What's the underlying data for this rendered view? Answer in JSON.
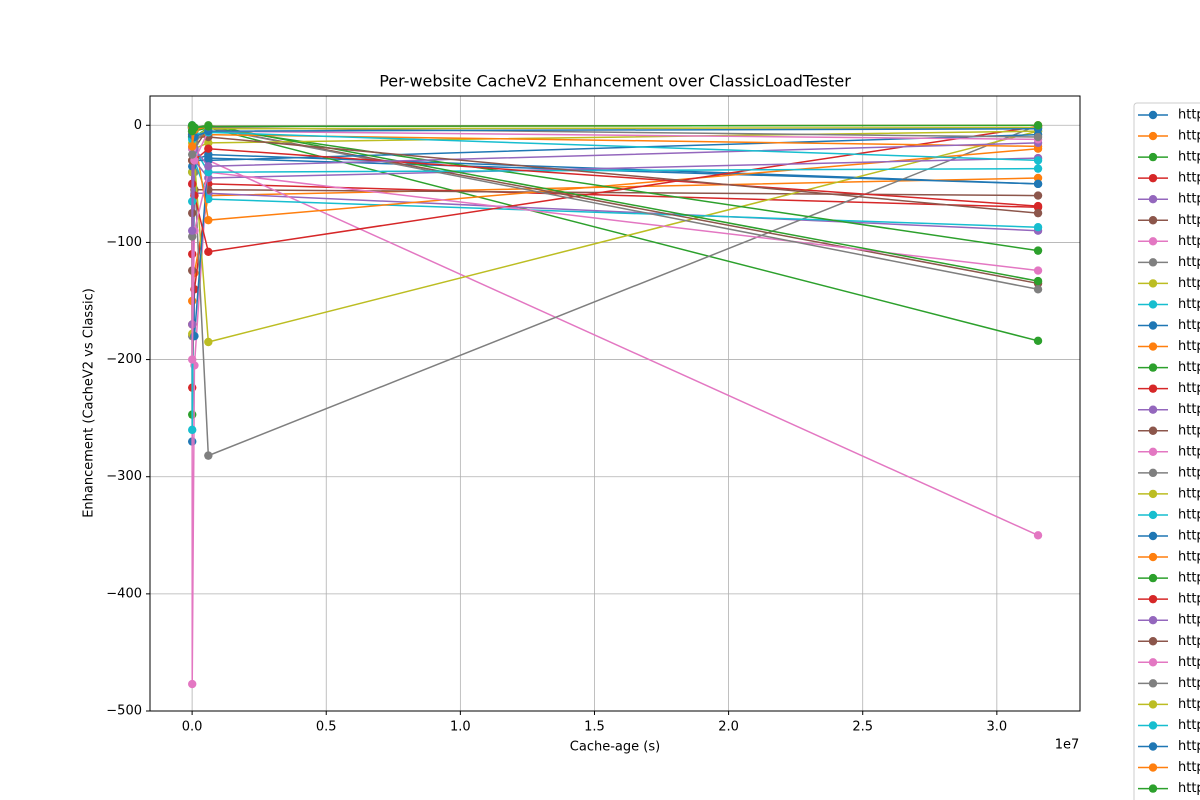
{
  "chart_data": {
    "type": "line",
    "title": "Per-website CacheV2 Enhancement over ClassicLoadTester",
    "x_label": "Cache-age (s)",
    "y_label": "Enhancement (CacheV2 vs Classic)",
    "x_offset_label": "1e7",
    "x": [
      0,
      3600,
      86400,
      604800,
      31536000
    ],
    "xlim": [
      -1570000,
      33100000
    ],
    "xticks": [
      {
        "value": 0,
        "label": "0.0"
      },
      {
        "value": 5000000,
        "label": "0.5"
      },
      {
        "value": 10000000,
        "label": "1.0"
      },
      {
        "value": 15000000,
        "label": "1.5"
      },
      {
        "value": 20000000,
        "label": "2.0"
      },
      {
        "value": 25000000,
        "label": "2.5"
      },
      {
        "value": 30000000,
        "label": "3.0"
      }
    ],
    "ylim": [
      -500,
      25
    ],
    "yticks": [
      {
        "value": -500,
        "label": "−500"
      },
      {
        "value": -400,
        "label": "−400"
      },
      {
        "value": -300,
        "label": "−300"
      },
      {
        "value": -200,
        "label": "−200"
      },
      {
        "value": -100,
        "label": "−100"
      },
      0
    ],
    "grid": true,
    "legend": "outside right",
    "series": [
      {
        "name": "http",
        "color": "#1f77b4",
        "values": [
          -5,
          -270,
          -30,
          -25,
          -50
        ]
      },
      {
        "name": "http",
        "color": "#ff7f0e",
        "values": [
          -10,
          -150,
          -126,
          -60,
          -45
        ]
      },
      {
        "name": "http",
        "color": "#2ca02c",
        "values": [
          -2,
          -247,
          -5,
          -2,
          -184
        ]
      },
      {
        "name": "http",
        "color": "#d62728",
        "values": [
          -5,
          -224,
          -140,
          -50,
          -70
        ]
      },
      {
        "name": "http",
        "color": "#9467bd",
        "values": [
          -3,
          -30,
          -58,
          -58,
          -90
        ]
      },
      {
        "name": "http",
        "color": "#8c564b",
        "values": [
          -10,
          -124,
          -55,
          -55,
          -60
        ]
      },
      {
        "name": "http",
        "color": "#e377c2",
        "values": [
          -50,
          -477,
          -205,
          -30,
          -350
        ]
      },
      {
        "name": "http",
        "color": "#7f7f7f",
        "values": [
          -2,
          -180,
          -40,
          -282,
          0
        ]
      },
      {
        "name": "http",
        "color": "#bcbd22",
        "values": [
          -5,
          -178,
          -30,
          -185,
          -5
        ]
      },
      {
        "name": "http",
        "color": "#17becf",
        "values": [
          -10,
          -260,
          -30,
          -63,
          -87
        ]
      },
      {
        "name": "http",
        "color": "#1f77b4",
        "values": [
          -3,
          -40,
          -180,
          -28,
          -50
        ]
      },
      {
        "name": "http",
        "color": "#ff7f0e",
        "values": [
          -2,
          -170,
          -10,
          -81,
          -20
        ]
      },
      {
        "name": "http",
        "color": "#2ca02c",
        "values": [
          -1,
          -20,
          -10,
          -2,
          -107
        ]
      },
      {
        "name": "http",
        "color": "#d62728",
        "values": [
          -8,
          -110,
          -60,
          -108,
          -1
        ]
      },
      {
        "name": "http",
        "color": "#9467bd",
        "values": [
          -5,
          -170,
          -30,
          -45,
          -28
        ]
      },
      {
        "name": "http",
        "color": "#8c564b",
        "values": [
          -3,
          -75,
          -20,
          -2,
          -135
        ]
      },
      {
        "name": "http",
        "color": "#e377c2",
        "values": [
          -2,
          -200,
          -90,
          -40,
          -124
        ]
      },
      {
        "name": "http",
        "color": "#7f7f7f",
        "values": [
          -1,
          -95,
          -15,
          -2,
          -140
        ]
      },
      {
        "name": "http",
        "color": "#bcbd22",
        "values": [
          -2,
          -40,
          -20,
          -15,
          -5
        ]
      },
      {
        "name": "http",
        "color": "#17becf",
        "values": [
          -3,
          -65,
          -20,
          -40,
          -37
        ]
      },
      {
        "name": "http",
        "color": "#1f77b4",
        "values": [
          -1,
          -35,
          -30,
          -30,
          -8
        ]
      },
      {
        "name": "http",
        "color": "#ff7f0e",
        "values": [
          -2,
          -30,
          -12,
          -8,
          -18
        ]
      },
      {
        "name": "http",
        "color": "#2ca02c",
        "values": [
          -1,
          -10,
          -2,
          0,
          -133
        ]
      },
      {
        "name": "http",
        "color": "#d62728",
        "values": [
          -2,
          -50,
          -30,
          -20,
          -69
        ]
      },
      {
        "name": "http",
        "color": "#9467bd",
        "values": [
          -1,
          -90,
          -20,
          -35,
          -15
        ]
      },
      {
        "name": "http",
        "color": "#8c564b",
        "values": [
          -2,
          -30,
          -10,
          -10,
          -75
        ]
      },
      {
        "name": "http",
        "color": "#e377c2",
        "values": [
          -1,
          -20,
          -30,
          -5,
          -12
        ]
      },
      {
        "name": "http",
        "color": "#7f7f7f",
        "values": [
          -1,
          -25,
          -15,
          -2,
          -10
        ]
      },
      {
        "name": "http",
        "color": "#bcbd22",
        "values": [
          -1,
          -15,
          -10,
          -3,
          -2
        ]
      },
      {
        "name": "http",
        "color": "#17becf",
        "values": [
          -1,
          -12,
          -8,
          -6,
          -30
        ]
      },
      {
        "name": "http",
        "color": "#1f77b4",
        "values": [
          0,
          -8,
          -10,
          -5,
          -3
        ]
      },
      {
        "name": "http",
        "color": "#ff7f0e",
        "values": [
          -1,
          -18,
          -4,
          -1,
          0
        ]
      },
      {
        "name": "http",
        "color": "#2ca02c",
        "values": [
          0,
          -5,
          -2,
          -1,
          0
        ]
      }
    ]
  }
}
